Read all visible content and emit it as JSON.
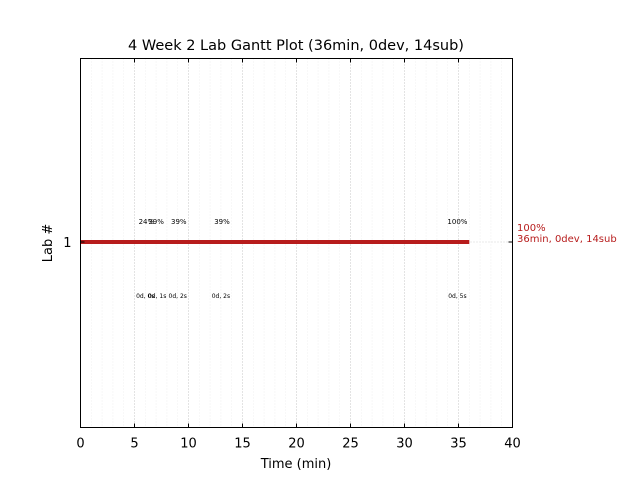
{
  "chart_data": {
    "type": "gantt",
    "title": "4 Week 2 Lab Gantt Plot (36min, 0dev, 14sub)",
    "xlabel": "Time (min)",
    "ylabel": "Lab #",
    "xlim": [
      0,
      40
    ],
    "xticks": [
      "0",
      "5",
      "10",
      "15",
      "20",
      "25",
      "30",
      "35",
      "40"
    ],
    "yticks": [
      {
        "value": 1,
        "label": "1"
      }
    ],
    "grid": true,
    "bar_color": "#b71c1c",
    "bars": [
      {
        "lab": 1,
        "start": 0,
        "end": 36
      }
    ],
    "annotations_above": [
      {
        "x": 6.1,
        "text": "24%"
      },
      {
        "x": 7.0,
        "text": "39%"
      },
      {
        "x": 9.1,
        "text": "39%"
      },
      {
        "x": 13.1,
        "text": "39%"
      },
      {
        "x": 34.9,
        "text": "100%"
      }
    ],
    "annotations_below": [
      {
        "x": 6.0,
        "text": "0d, 0s"
      },
      {
        "x": 7.1,
        "text": "0d, 1s"
      },
      {
        "x": 9.0,
        "text": "0d, 2s"
      },
      {
        "x": 13.0,
        "text": "0d, 2s"
      },
      {
        "x": 34.9,
        "text": "0d, 5s"
      }
    ],
    "end_labels": [
      "100%",
      "36min, 0dev, 14sub"
    ]
  }
}
